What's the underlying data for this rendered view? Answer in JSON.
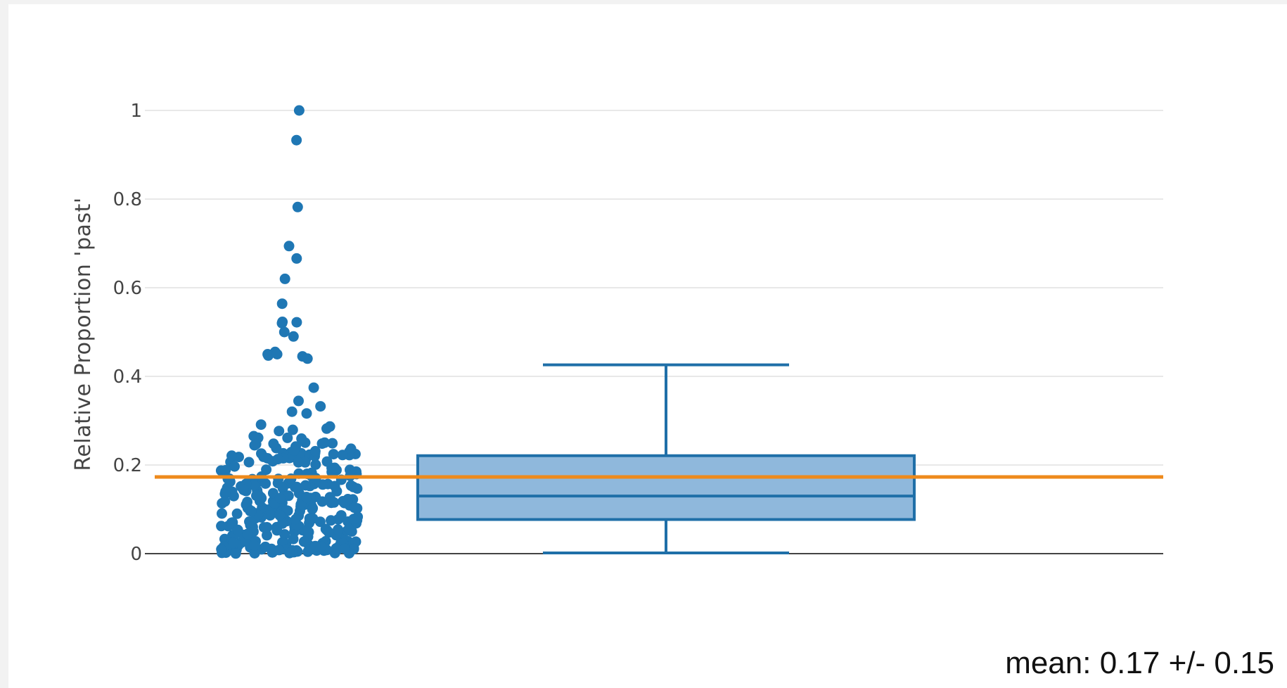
{
  "chart_data": {
    "type": "box",
    "title": "",
    "ylabel": "Relative Proportion 'past'",
    "xlabel": "",
    "ylim": [
      0,
      1
    ],
    "yticks": [
      0,
      0.2,
      0.4,
      0.6,
      0.8,
      1
    ],
    "ytick_labels": [
      "0",
      "0.2",
      "0.4",
      "0.6",
      "0.8",
      "1"
    ],
    "grid": true,
    "legend": "none",
    "box": {
      "lower_whisker": 0.0,
      "q1": 0.077,
      "median": 0.13,
      "q3": 0.221,
      "upper_whisker": 0.426
    },
    "mean_line": 0.173,
    "points_outliers_high": [
      1.0,
      0.933,
      0.782,
      0.694,
      0.666,
      0.62,
      0.564,
      0.523,
      0.52,
      0.522,
      0.5,
      0.49,
      0.455,
      0.45,
      0.447,
      0.445,
      0.44,
      0.45
    ],
    "points_summary": {
      "count": 330,
      "note_hidden": false
    },
    "colors": {
      "points": "#1f77b4",
      "box_fill": "#8fb8dc",
      "box_line": "#1f6fa8",
      "mean_line": "#ee8a1c",
      "grid": "#e8e8e8",
      "zero_line": "#444444"
    }
  },
  "annotation": "mean: 0.17 +/- 0.15"
}
